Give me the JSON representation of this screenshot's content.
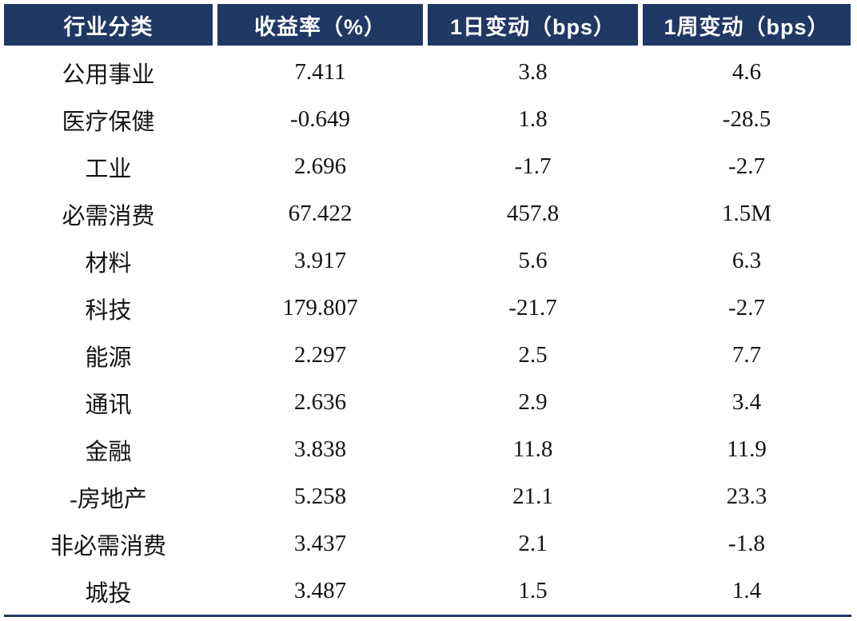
{
  "colors": {
    "header_bg": "#1F3864",
    "header_text": "#FFFFFF",
    "body_text": "#141414",
    "bottom_rule": "#1F3864"
  },
  "table": {
    "columns": [
      "行业分类",
      "收益率（%）",
      "1日变动（bps）",
      "1周变动（bps）"
    ],
    "rows": [
      [
        "公用事业",
        "7.411",
        "3.8",
        "4.6"
      ],
      [
        "医疗保健",
        "-0.649",
        "1.8",
        "-28.5"
      ],
      [
        "工业",
        "2.696",
        "-1.7",
        "-2.7"
      ],
      [
        "必需消费",
        "67.422",
        "457.8",
        "1.5M"
      ],
      [
        "材料",
        "3.917",
        "5.6",
        "6.3"
      ],
      [
        "科技",
        "179.807",
        "-21.7",
        "-2.7"
      ],
      [
        "能源",
        "2.297",
        "2.5",
        "7.7"
      ],
      [
        "通讯",
        "2.636",
        "2.9",
        "3.4"
      ],
      [
        "金融",
        "3.838",
        "11.8",
        "11.9"
      ],
      [
        "-房地产",
        "5.258",
        "21.1",
        "23.3"
      ],
      [
        "非必需消费",
        "3.437",
        "2.1",
        "-1.8"
      ],
      [
        "城投",
        "3.487",
        "1.5",
        "1.4"
      ]
    ]
  },
  "chart_data": {
    "type": "table",
    "title": "",
    "columns": [
      "行业分类",
      "收益率（%）",
      "1日变动（bps）",
      "1周变动（bps）"
    ],
    "rows": [
      [
        "公用事业",
        "7.411",
        "3.8",
        "4.6"
      ],
      [
        "医疗保健",
        "-0.649",
        "1.8",
        "-28.5"
      ],
      [
        "工业",
        "2.696",
        "-1.7",
        "-2.7"
      ],
      [
        "必需消费",
        "67.422",
        "457.8",
        "1.5M"
      ],
      [
        "材料",
        "3.917",
        "5.6",
        "6.3"
      ],
      [
        "科技",
        "179.807",
        "-21.7",
        "-2.7"
      ],
      [
        "能源",
        "2.297",
        "2.5",
        "7.7"
      ],
      [
        "通讯",
        "2.636",
        "2.9",
        "3.4"
      ],
      [
        "金融",
        "3.838",
        "11.8",
        "11.9"
      ],
      [
        "-房地产",
        "5.258",
        "21.1",
        "23.3"
      ],
      [
        "非必需消费",
        "3.437",
        "2.1",
        "-1.8"
      ],
      [
        "城投",
        "3.487",
        "1.5",
        "1.4"
      ]
    ]
  }
}
